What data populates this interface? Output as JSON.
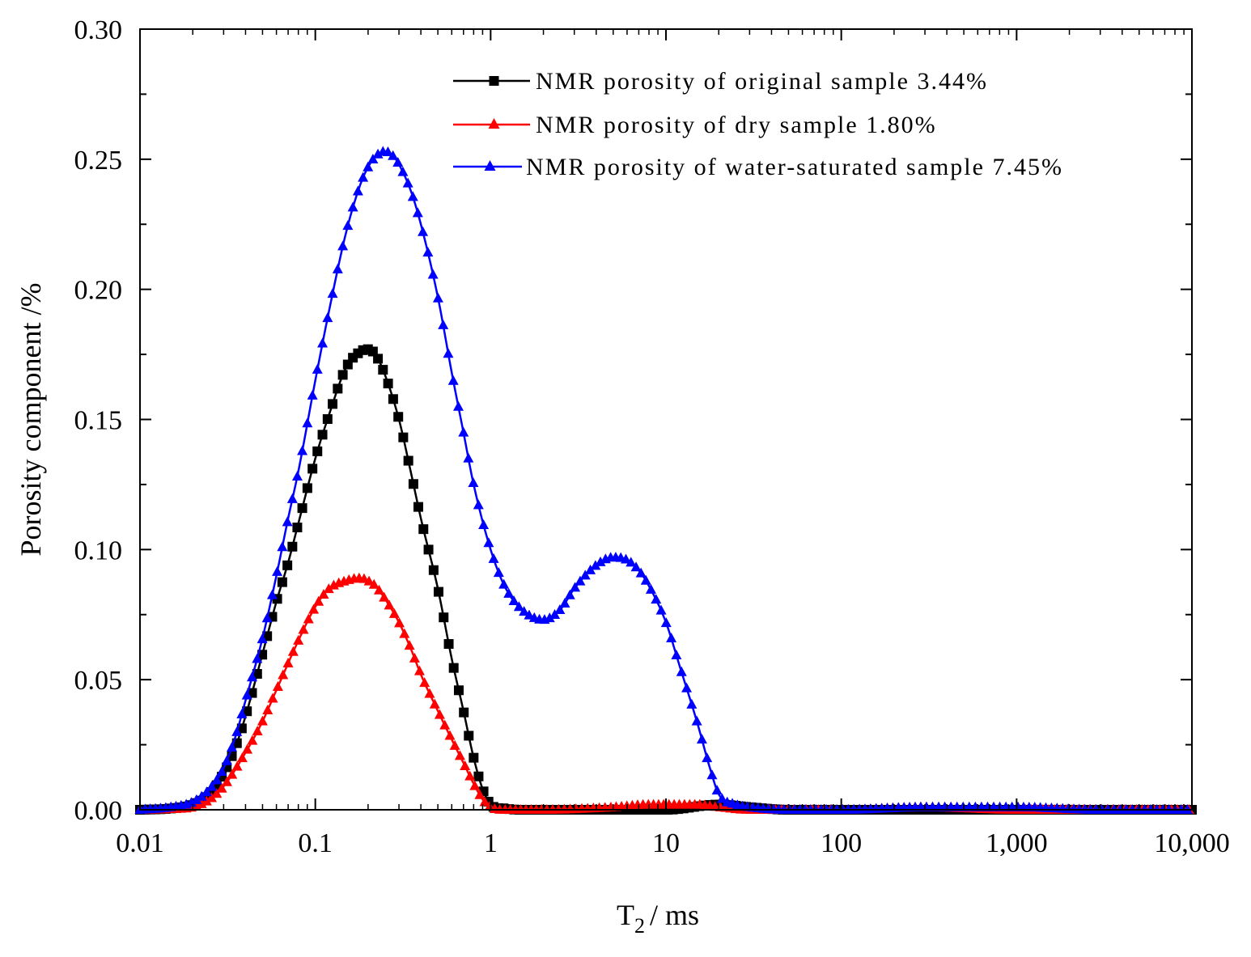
{
  "chart_data": {
    "type": "line",
    "title": "",
    "xlabel": "T",
    "xlabel_subscript": "2",
    "xlabel_unit": "/ ms",
    "ylabel": "Porosity component /%",
    "x_scale": "log",
    "xlim": [
      0.01,
      10000
    ],
    "ylim": [
      0,
      0.3
    ],
    "x_ticks": [
      0.01,
      0.1,
      1,
      10,
      100,
      1000,
      10000
    ],
    "x_tick_labels": [
      "0.01",
      "0.1",
      "1",
      "10",
      "100",
      "1,000",
      "10,000"
    ],
    "y_ticks": [
      0,
      0.05,
      0.1,
      0.15,
      0.2,
      0.25,
      0.3
    ],
    "y_tick_labels": [
      "0.00",
      "0.05",
      "0.10",
      "0.15",
      "0.20",
      "0.25",
      "0.30"
    ],
    "legend_position": "top-right",
    "series": [
      {
        "name": "NMR porosity of original sample 3.44%",
        "color": "#000000",
        "marker": "square",
        "x": [
          0.01,
          0.015,
          0.02,
          0.025,
          0.03,
          0.035,
          0.04,
          0.05,
          0.06,
          0.07,
          0.08,
          0.1,
          0.12,
          0.15,
          0.18,
          0.2,
          0.22,
          0.25,
          0.3,
          0.35,
          0.4,
          0.5,
          0.6,
          0.7,
          0.8,
          0.9,
          1.0,
          1.2,
          2,
          5,
          10,
          20,
          30,
          50,
          100,
          300,
          1000,
          10000
        ],
        "y": [
          0,
          0.0005,
          0.002,
          0.006,
          0.014,
          0.024,
          0.036,
          0.06,
          0.08,
          0.095,
          0.11,
          0.135,
          0.152,
          0.17,
          0.176,
          0.177,
          0.175,
          0.167,
          0.15,
          0.13,
          0.112,
          0.085,
          0.058,
          0.038,
          0.02,
          0.008,
          0.002,
          0.0005,
          0,
          0,
          0,
          0.002,
          0.001,
          0,
          0,
          0,
          0,
          0
        ]
      },
      {
        "name": "NMR porosity of dry sample 1.80%",
        "color": "#ff0000",
        "marker": "triangle",
        "x": [
          0.01,
          0.015,
          0.02,
          0.025,
          0.03,
          0.04,
          0.05,
          0.06,
          0.08,
          0.1,
          0.12,
          0.15,
          0.18,
          0.2,
          0.22,
          0.25,
          0.3,
          0.35,
          0.4,
          0.5,
          0.6,
          0.7,
          0.8,
          0.9,
          1.0,
          1.2,
          2,
          5,
          8,
          10,
          15,
          20,
          30,
          100,
          300,
          1000,
          10000
        ],
        "y": [
          0,
          0.0003,
          0.001,
          0.004,
          0.009,
          0.022,
          0.034,
          0.046,
          0.065,
          0.078,
          0.085,
          0.088,
          0.089,
          0.088,
          0.086,
          0.081,
          0.072,
          0.062,
          0.052,
          0.038,
          0.027,
          0.018,
          0.01,
          0.004,
          0.001,
          0,
          0,
          0.001,
          0.002,
          0.002,
          0.002,
          0.001,
          0,
          0,
          0.001,
          0,
          0
        ]
      },
      {
        "name": "NMR porosity of water-saturated sample 7.45%",
        "color": "#0000ff",
        "marker": "triangle",
        "x": [
          0.01,
          0.015,
          0.02,
          0.025,
          0.03,
          0.035,
          0.04,
          0.05,
          0.06,
          0.07,
          0.08,
          0.1,
          0.12,
          0.15,
          0.18,
          0.2,
          0.22,
          0.25,
          0.28,
          0.3,
          0.35,
          0.4,
          0.5,
          0.6,
          0.7,
          0.8,
          1.0,
          1.2,
          1.5,
          2.0,
          2.5,
          3.0,
          4.0,
          5.0,
          6.0,
          7.0,
          8.0,
          10,
          12,
          15,
          18,
          20,
          25,
          30,
          50,
          100,
          300,
          1000,
          3000,
          10000
        ],
        "y": [
          0,
          0.001,
          0.003,
          0.008,
          0.016,
          0.028,
          0.042,
          0.066,
          0.09,
          0.112,
          0.13,
          0.165,
          0.192,
          0.222,
          0.24,
          0.247,
          0.251,
          0.253,
          0.251,
          0.248,
          0.238,
          0.225,
          0.197,
          0.168,
          0.145,
          0.125,
          0.1,
          0.086,
          0.077,
          0.073,
          0.077,
          0.085,
          0.094,
          0.097,
          0.096,
          0.092,
          0.086,
          0.072,
          0.055,
          0.034,
          0.015,
          0.006,
          0.002,
          0.001,
          0,
          0,
          0.001,
          0.001,
          0,
          0
        ]
      }
    ]
  }
}
